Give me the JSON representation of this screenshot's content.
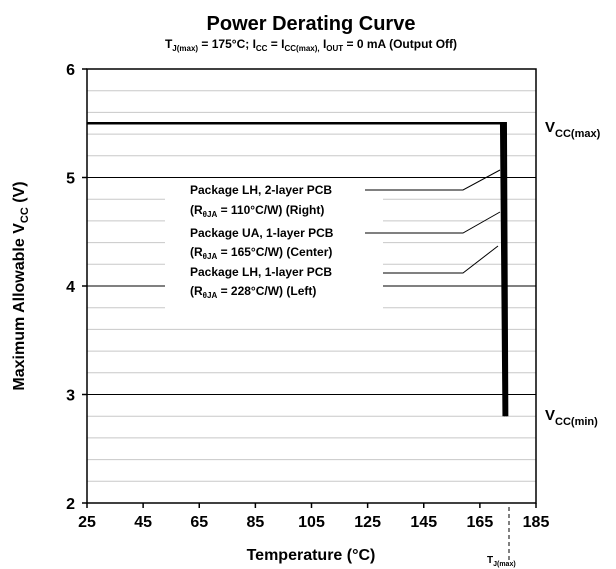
{
  "chart_data": {
    "type": "line",
    "title": "Power Derating Curve",
    "subtitle": {
      "tj_label": "T",
      "tj_sub": "J(max)",
      "tj_value": " = 175°C; I",
      "icc_sub": "CC",
      "icc_eq": " = I",
      "iccmax_sub": "CC(max),",
      "iout_label": " I",
      "iout_sub": "OUT",
      "iout_value": " = 0 mA (Output Off)"
    },
    "xlabel": "Temperature (°C)",
    "ylabel": {
      "main": "Maximum Allowable V",
      "sub": "CC",
      "unit": " (V)"
    },
    "xlim": [
      25,
      185
    ],
    "ylim": [
      2,
      6
    ],
    "x_ticks": [
      25,
      45,
      65,
      85,
      105,
      125,
      145,
      165,
      185
    ],
    "y_ticks": [
      2,
      3,
      4,
      5,
      6
    ],
    "x_tick_labels": [
      "25",
      "45",
      "65",
      "85",
      "105",
      "125",
      "145",
      "165",
      "185"
    ],
    "y_tick_labels": [
      "2",
      "3",
      "4",
      "5",
      "6"
    ],
    "minor_y_step": 0.2,
    "grid": true,
    "series": [
      {
        "name": "Package LH, 2-layer PCB (RθJA = 110°C/W) (Right)",
        "x": [
          25,
          174.2,
          174.7
        ],
        "y": [
          5.5,
          5.5,
          2.8
        ]
      },
      {
        "name": "Package UA, 1-layer PCB (RθJA = 165°C/W) (Center)",
        "x": [
          25,
          173.4,
          174.1
        ],
        "y": [
          5.5,
          5.5,
          2.8
        ]
      },
      {
        "name": "Package LH, 1-layer PCB (RθJA = 228°C/W) (Left)",
        "x": [
          25,
          172.6,
          173.5
        ],
        "y": [
          5.5,
          5.5,
          2.8
        ]
      }
    ],
    "annotations": {
      "vccmax": {
        "main": "V",
        "sub": "CC(max)"
      },
      "vccmin": {
        "main": "V",
        "sub": "CC(min)"
      },
      "tjmax": {
        "main": "T",
        "sub": "J(max)"
      },
      "legend": [
        {
          "line1": "Package LH, 2-layer PCB",
          "line2_pre": "(R",
          "line2_sub": "θJA",
          "line2_post": " = 110°C/W) (Right)"
        },
        {
          "line1": "Package UA, 1-layer PCB",
          "line2_pre": "(R",
          "line2_sub": "θJA",
          "line2_post": " = 165°C/W) (Center)"
        },
        {
          "line1": "Package LH, 1-layer PCB",
          "line2_pre": "(R",
          "line2_sub": "θJA",
          "line2_post": " = 228°C/W) (Left)"
        }
      ]
    }
  }
}
